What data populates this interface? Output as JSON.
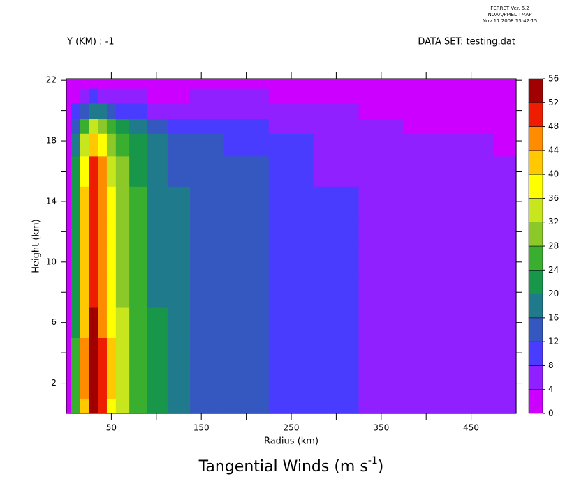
{
  "chart_data": {
    "type": "contour",
    "header": [
      "FERRET Ver. 6.2",
      "NOAA/PMEL TMAP",
      "Nov 17 2008 13:42:15"
    ],
    "subtitle_left": "Y (KM) : -1",
    "subtitle_right": "DATA SET: testing.dat",
    "title_parts": [
      "Tangential Winds (m s",
      "-1",
      ")"
    ],
    "xlabel": "Radius (km)",
    "ylabel": "Height (km)",
    "xlim": [
      0,
      500
    ],
    "ylim": [
      0,
      22.1
    ],
    "xticks": [
      50,
      150,
      250,
      350,
      450
    ],
    "xminor": [
      100,
      200,
      300,
      400
    ],
    "yticks": [
      2,
      6,
      10,
      14,
      18,
      22
    ],
    "yminor": [
      4,
      8,
      12,
      16,
      20
    ],
    "levels": [
      0,
      4,
      8,
      12,
      16,
      20,
      24,
      28,
      32,
      36,
      40,
      44,
      48,
      52,
      56
    ],
    "colors": [
      "#cc00ff",
      "#9020ff",
      "#4a3cff",
      "#3558c0",
      "#1f7a8c",
      "#18964a",
      "#3aae2e",
      "#8cc828",
      "#c8e61e",
      "#ffff00",
      "#ffc800",
      "#ff8c00",
      "#ee1c00",
      "#a00000"
    ],
    "x": [
      0,
      10,
      20,
      30,
      40,
      50,
      60,
      80,
      100,
      125,
      150,
      200,
      250,
      300,
      350,
      400,
      450,
      500
    ],
    "y": [
      0,
      2,
      4,
      6,
      8,
      10,
      12,
      14,
      16,
      18,
      19,
      20,
      21,
      22
    ],
    "z": [
      [
        0,
        24.3,
        43.7,
        53.4,
        48.5,
        38.8,
        33,
        26.2,
        21.3,
        17.5,
        15.5,
        13,
        11,
        8.2,
        6.5,
        5.5,
        5,
        4.8
      ],
      [
        0,
        25,
        45,
        55,
        50,
        40,
        34,
        27,
        22,
        18,
        15.5,
        13,
        11,
        8.2,
        6.5,
        5.5,
        5,
        4.8
      ],
      [
        0,
        25,
        45,
        55,
        50,
        40,
        34,
        27,
        22,
        18,
        15.5,
        13,
        11,
        8.2,
        6.5,
        5.5,
        5,
        4.8
      ],
      [
        0,
        23.8,
        42.8,
        52.3,
        47.5,
        38,
        32.3,
        25.7,
        20.9,
        17.1,
        15.5,
        13,
        11,
        8.2,
        6.5,
        5.5,
        5,
        4.8
      ],
      [
        0,
        22.5,
        40.5,
        49.5,
        45,
        36,
        30.6,
        24.3,
        19.8,
        16.2,
        15.5,
        13,
        11,
        8.2,
        6.5,
        5.5,
        5,
        4.8
      ],
      [
        0,
        22.5,
        40.5,
        49.5,
        45,
        36,
        30.6,
        24.3,
        19.8,
        16.2,
        15.5,
        13,
        11,
        8.2,
        6.5,
        5.5,
        5,
        4.8
      ],
      [
        0,
        22.5,
        40.5,
        49.5,
        45,
        36,
        30.6,
        24.3,
        19.8,
        16.2,
        15.5,
        13,
        11,
        8.2,
        6.5,
        5.5,
        5,
        4.8
      ],
      [
        0,
        22.5,
        40.5,
        49.5,
        45,
        36,
        30.6,
        24.3,
        19.8,
        16.2,
        15.5,
        13,
        11,
        8.2,
        6.5,
        5.5,
        5,
        4.8
      ],
      [
        0,
        22,
        39.6,
        48.4,
        44,
        35.2,
        29.9,
        23.8,
        19.4,
        15.8,
        14.7,
        12.4,
        10.5,
        7.6,
        6.2,
        5.2,
        4.8,
        4.6
      ],
      [
        0,
        18.8,
        33.8,
        41.3,
        37.5,
        30,
        25.5,
        20.3,
        16.5,
        13.5,
        12.4,
        10.4,
        8.8,
        6.4,
        5.2,
        4.4,
        4,
        3.8
      ],
      [
        0,
        15.5,
        27.9,
        34.1,
        31,
        24.8,
        21.1,
        16.7,
        13.6,
        11.2,
        10.1,
        8.5,
        7.2,
        5.2,
        4.2,
        3.6,
        3.3,
        3.1
      ],
      [
        0,
        8.8,
        15.8,
        19.3,
        17.5,
        14,
        11.9,
        9.5,
        7.7,
        6.3,
        7.8,
        6.5,
        5.5,
        4,
        3.3,
        2.8,
        2.5,
        2.4
      ],
      [
        0,
        3.8,
        6.8,
        8.3,
        7.5,
        6,
        5.1,
        4.1,
        3.3,
        2.7,
        5.4,
        4.6,
        3.9,
        2.8,
        2.3,
        1.9,
        1.8,
        1.7
      ],
      [
        0,
        1.8,
        3.2,
        3.9,
        3.5,
        2.8,
        2.4,
        1.9,
        1.5,
        1.3,
        3.9,
        3.3,
        2.8,
        2,
        1.6,
        1.4,
        1.3,
        1.2
      ]
    ]
  }
}
